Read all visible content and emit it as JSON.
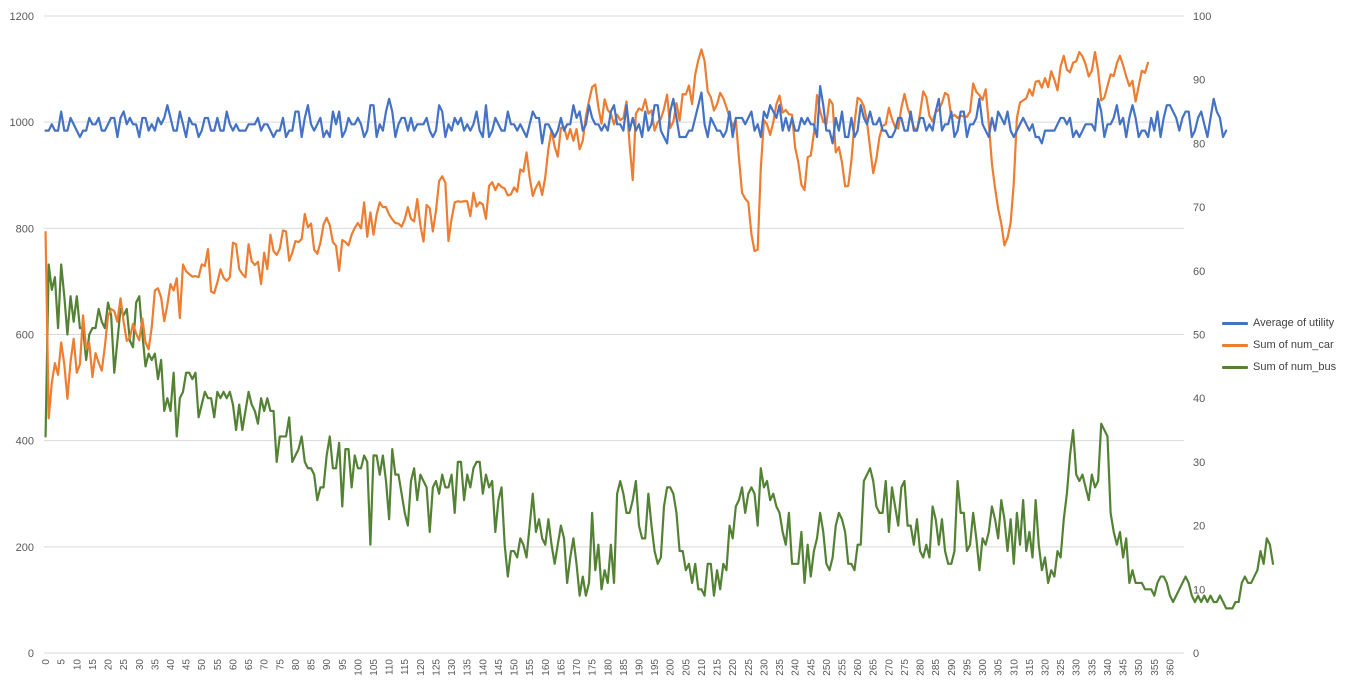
{
  "chart_data": {
    "type": "line",
    "title": "",
    "xlabel": "",
    "ylabel": "",
    "x": {
      "start": 0,
      "end": 364,
      "tick_step": 5
    },
    "y_left": {
      "min": 0,
      "max": 1200,
      "step": 200,
      "ticks": [
        "0",
        "200",
        "400",
        "600",
        "800",
        "1000",
        "1200"
      ]
    },
    "y_right": {
      "min": 0,
      "max": 100,
      "step": 10,
      "ticks": [
        "0",
        "10",
        "20",
        "30",
        "40",
        "50",
        "60",
        "70",
        "80",
        "90",
        "100"
      ]
    },
    "grid": "horizontal",
    "legend_position": "right",
    "series": [
      {
        "name": "Average of utility",
        "axis": "right",
        "color": "#4472C4",
        "values": [
          82,
          82,
          83,
          82,
          82,
          85,
          82,
          82,
          84,
          83,
          82,
          81,
          82,
          82,
          84,
          83,
          83,
          84,
          82,
          82,
          83,
          84,
          84,
          81,
          84,
          85,
          83,
          84,
          83,
          83,
          81,
          84,
          84,
          82,
          83,
          82,
          84,
          83,
          84,
          86,
          84,
          82,
          82,
          85,
          83,
          81,
          84,
          83,
          83,
          81,
          82,
          84,
          84,
          82,
          82,
          84,
          82,
          82,
          85,
          83,
          82,
          83,
          82,
          82,
          82,
          83,
          83,
          83,
          84,
          82,
          83,
          83,
          82,
          81,
          82,
          82,
          84,
          81,
          82,
          82,
          85,
          85,
          81,
          84,
          86,
          83,
          82,
          83,
          84,
          81,
          82,
          81,
          85,
          83,
          85,
          81,
          82,
          84,
          83,
          83,
          84,
          83,
          81,
          82,
          86,
          86,
          81,
          83,
          82,
          85,
          87,
          85,
          81,
          83,
          84,
          84,
          82,
          84,
          82,
          83,
          83,
          83,
          84,
          82,
          81,
          82,
          86,
          85,
          81,
          83,
          82,
          84,
          83,
          84,
          82,
          83,
          82,
          83,
          85,
          82,
          81,
          86,
          81,
          82,
          84,
          83,
          82,
          82,
          85,
          83,
          83,
          82,
          83,
          82,
          81,
          83,
          85,
          84,
          84,
          80,
          83,
          83,
          82,
          81,
          82,
          84,
          82,
          83,
          83,
          86,
          84,
          85,
          82,
          83,
          86,
          84,
          83,
          83,
          82,
          83,
          82,
          85,
          86,
          83,
          83,
          82,
          86,
          82,
          84,
          82,
          83,
          81,
          85,
          82,
          83,
          86,
          86,
          82,
          81,
          80,
          85,
          87,
          84,
          81,
          81,
          81,
          82,
          82,
          84,
          86,
          88,
          83,
          81,
          84,
          83,
          82,
          82,
          81,
          82,
          85,
          81,
          84,
          84,
          84,
          83,
          84,
          85,
          82,
          83,
          81,
          85,
          84,
          86,
          85,
          84,
          86,
          82,
          84,
          82,
          84,
          82,
          82,
          84,
          83,
          84,
          83,
          83,
          81,
          89,
          86,
          82,
          82,
          80,
          84,
          82,
          85,
          81,
          81,
          84,
          81,
          82,
          86,
          84,
          83,
          85,
          83,
          83,
          84,
          82,
          82,
          81,
          81,
          82,
          84,
          84,
          82,
          82,
          85,
          82,
          82,
          84,
          84,
          82,
          83,
          82,
          85,
          87,
          82,
          83,
          83,
          85,
          81,
          82,
          85,
          85,
          81,
          83,
          83,
          84,
          87,
          83,
          82,
          81,
          84,
          82,
          85,
          84,
          83,
          85,
          82,
          81,
          82,
          83,
          84,
          83,
          82,
          83,
          81,
          81,
          80,
          82,
          82,
          82,
          82,
          83,
          84,
          84,
          83,
          84,
          81,
          82,
          81,
          82,
          83,
          83,
          83,
          82,
          87,
          85,
          81,
          83,
          83,
          84,
          86,
          83,
          84,
          81,
          84,
          86,
          84,
          81,
          82,
          82,
          81,
          84,
          82,
          85,
          81,
          84,
          86,
          86,
          85,
          84,
          82,
          84,
          85,
          85,
          81,
          82,
          84,
          85,
          83,
          81,
          84,
          87,
          85,
          84,
          81,
          82
        ]
      },
      {
        "name": "Sum of num_car",
        "axis": "left",
        "color": "#ED7D31",
        "values": [
          793,
          442,
          509,
          546,
          524,
          585,
          544,
          479,
          549,
          592,
          528,
          544,
          636,
          572,
          584,
          520,
          565,
          547,
          532,
          578,
          635,
          648,
          644,
          624,
          668,
          624,
          588,
          594,
          620,
          602,
          589,
          630,
          585,
          572,
          614,
          683,
          687,
          670,
          625,
          656,
          695,
          683,
          706,
          631,
          732,
          719,
          714,
          709,
          710,
          708,
          732,
          729,
          761,
          681,
          678,
          698,
          723,
          707,
          701,
          708,
          773,
          770,
          723,
          714,
          708,
          770,
          738,
          731,
          737,
          695,
          754,
          723,
          788,
          757,
          750,
          762,
          796,
          794,
          739,
          754,
          776,
          774,
          780,
          827,
          802,
          809,
          760,
          752,
          773,
          807,
          820,
          806,
          774,
          767,
          720,
          778,
          774,
          768,
          788,
          801,
          810,
          800,
          849,
          784,
          830,
          788,
          826,
          849,
          840,
          840,
          826,
          817,
          810,
          809,
          803,
          817,
          840,
          818,
          813,
          855,
          806,
          775,
          844,
          838,
          794,
          833,
          889,
          898,
          886,
          776,
          818,
          849,
          851,
          850,
          851,
          851,
          823,
          867,
          841,
          849,
          845,
          818,
          880,
          887,
          872,
          884,
          878,
          875,
          862,
          864,
          877,
          869,
          911,
          907,
          943,
          896,
          861,
          877,
          888,
          863,
          897,
          950,
          985,
          954,
          935,
          989,
          991,
          968,
          987,
          965,
          987,
          949,
          965,
          1011,
          1040,
          1066,
          1071,
          1028,
          997,
          1043,
          1023,
          1016,
          996,
          1014,
          1004,
          1008,
          1039,
          957,
          891,
          1016,
          1026,
          1022,
          1043,
          1016,
          1022,
          984,
          1000,
          1006,
          1025,
          1052,
          989,
          1001,
          1036,
          1003,
          1053,
          1052,
          1069,
          1034,
          1090,
          1117,
          1137,
          1115,
          1058,
          1047,
          1022,
          1034,
          1055,
          1045,
          1028,
          1009,
          992,
          1004,
          933,
          867,
          856,
          849,
          789,
          757,
          760,
          912,
          1004,
          996,
          976,
          1000,
          1034,
          1050,
          1018,
          1023,
          1015,
          1014,
          952,
          925,
          882,
          872,
          934,
          937,
          979,
          1051,
          1020,
          1001,
          996,
          1043,
          1034,
          943,
          953,
          924,
          879,
          880,
          927,
          998,
          1046,
          1042,
          1030,
          1001,
          951,
          904,
          931,
          972,
          993,
          996,
          1027,
          1006,
          991,
          988,
          1027,
          1053,
          1027,
          1010,
          990,
          984,
          1017,
          1058,
          1047,
          1012,
          1001,
          1019,
          1023,
          1036,
          1055,
          1051,
          1009,
          1014,
          1008,
          1012,
          1011,
          1010,
          1020,
          1073,
          1057,
          1051,
          1042,
          1062,
          998,
          922,
          876,
          837,
          809,
          768,
          782,
          811,
          885,
          1008,
          1037,
          1041,
          1045,
          1062,
          1050,
          1076,
          1078,
          1065,
          1083,
          1066,
          1096,
          1080,
          1060,
          1105,
          1125,
          1099,
          1094,
          1112,
          1115,
          1132,
          1124,
          1109,
          1086,
          1097,
          1132,
          1097,
          1041,
          1046,
          1068,
          1090,
          1087,
          1111,
          1125,
          1107,
          1086,
          1068,
          1078,
          1039,
          1068,
          1097,
          1093,
          1112
        ]
      },
      {
        "name": "Sum of num_bus",
        "axis": "right",
        "color": "#548235",
        "values": [
          34,
          61,
          57,
          59,
          51,
          61,
          56,
          50,
          56,
          52,
          56,
          51,
          51,
          46,
          50,
          51,
          51,
          54,
          52,
          51,
          55,
          53,
          44,
          49,
          54,
          53,
          54,
          49,
          48,
          55,
          56,
          50,
          45,
          47,
          46,
          47,
          43,
          46,
          38,
          40,
          38,
          44,
          34,
          40,
          41,
          44,
          44,
          43,
          44,
          37,
          39,
          41,
          40,
          40,
          37,
          41,
          40,
          41,
          40,
          41,
          39,
          35,
          39,
          35,
          38,
          41,
          39,
          38,
          36,
          40,
          38,
          40,
          38,
          38,
          30,
          34,
          34,
          34,
          37,
          30,
          31,
          32,
          34,
          30,
          29,
          29,
          28,
          24,
          26,
          26,
          31,
          34,
          29,
          29,
          33,
          23,
          32,
          32,
          26,
          31,
          29,
          29,
          31,
          30,
          17,
          31,
          31,
          28,
          31,
          27,
          21,
          32,
          28,
          28,
          25,
          22,
          20,
          27,
          29,
          24,
          28,
          27,
          26,
          19,
          26,
          27,
          25,
          28,
          26,
          26,
          28,
          22,
          30,
          30,
          24,
          28,
          26,
          29,
          30,
          30,
          25,
          28,
          26,
          27,
          19,
          24,
          26,
          17,
          12,
          16,
          16,
          15,
          18,
          17,
          15,
          20,
          25,
          19,
          21,
          18,
          17,
          21,
          17,
          14,
          17,
          20,
          18,
          11,
          15,
          18,
          14,
          9,
          12,
          9,
          11,
          22,
          13,
          17,
          10,
          13,
          11,
          17,
          11,
          25,
          27,
          25,
          22,
          22,
          24,
          27,
          20,
          18,
          18,
          25,
          20,
          16,
          14,
          15,
          23,
          26,
          26,
          25,
          22,
          16,
          16,
          13,
          14,
          11,
          14,
          10,
          10,
          9,
          14,
          14,
          9,
          13,
          10,
          14,
          13,
          20,
          18,
          23,
          24,
          26,
          22,
          25,
          26,
          25,
          20,
          29,
          26,
          27,
          24,
          25,
          23,
          22,
          19,
          17,
          22,
          14,
          14,
          14,
          19,
          11,
          17,
          12,
          16,
          18,
          22,
          19,
          14,
          13,
          15,
          20,
          22,
          21,
          19,
          14,
          14,
          13,
          17,
          17,
          27,
          28,
          29,
          27,
          23,
          22,
          22,
          27,
          19,
          26,
          23,
          20,
          26,
          27,
          20,
          20,
          17,
          21,
          16,
          15,
          17,
          15,
          23,
          21,
          17,
          21,
          16,
          14,
          14,
          16,
          27,
          22,
          22,
          16,
          17,
          22,
          18,
          13,
          18,
          17,
          19,
          23,
          21,
          18,
          24,
          21,
          16,
          21,
          14,
          22,
          17,
          24,
          16,
          19,
          15,
          24,
          17,
          13,
          15,
          11,
          13,
          12,
          16,
          15,
          21,
          25,
          31,
          35,
          28,
          27,
          28,
          26,
          24,
          28,
          26,
          27,
          36,
          35,
          34,
          22,
          19,
          17,
          19,
          15,
          18,
          11,
          13,
          11,
          11,
          11,
          10,
          10,
          10,
          9,
          11,
          12,
          12,
          11,
          9,
          8,
          9,
          10,
          11,
          12,
          11,
          9,
          8,
          9,
          8,
          9,
          8,
          9,
          8,
          8,
          9,
          8,
          7,
          7,
          7,
          8,
          8,
          11,
          12,
          11,
          11,
          12,
          13,
          16,
          14,
          18,
          17,
          14
        ]
      }
    ]
  }
}
